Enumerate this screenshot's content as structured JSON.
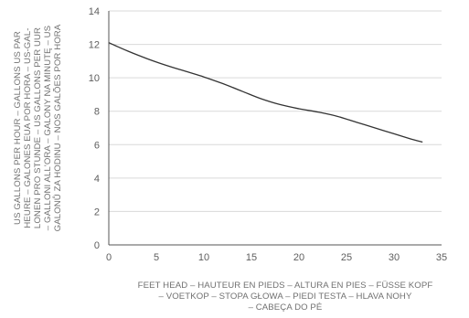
{
  "chart_data": {
    "type": "line",
    "title": "",
    "xlabel_lines": [
      "FEET HEAD – HAUTEUR EN PIEDS – ALTURA EN PIES – FÜSSE KOPF",
      "– VOETKOP – STOPA GŁOWA – PIEDI TESTA – HLAVA NOHY",
      "– CABEÇA DO PÉ"
    ],
    "ylabel_lines": [
      "US GALLONS PER HOUR – GALLONS US PAR",
      "HEURE – GALONES EUA POR HORA – US-GAL-",
      "LONEN PRO STUNDE – US GALLONS PER UUR",
      "– GALLONI ALL'ORA – GALONY NA MINUTĘ – US",
      "GALONŮ ZA HODINU – NOS GALÕES POR HORA"
    ],
    "xlim": [
      0,
      35
    ],
    "ylim": [
      0,
      14
    ],
    "xticks": [
      "0",
      "5",
      "10",
      "15",
      "20",
      "25",
      "30",
      "35"
    ],
    "yticks": [
      "0",
      "2",
      "4",
      "6",
      "8",
      "10",
      "12",
      "14"
    ],
    "grid": "horizontal",
    "colors": {
      "line": "#333333",
      "grid": "#d9d9d9",
      "axis": "#555555"
    },
    "series": [
      {
        "x": [
          0,
          2,
          4,
          6,
          8,
          10,
          12,
          14,
          16,
          18,
          20,
          22,
          24,
          26,
          28,
          30,
          32,
          33
        ],
        "y": [
          12.1,
          11.6,
          11.15,
          10.75,
          10.4,
          10.05,
          9.65,
          9.2,
          8.75,
          8.4,
          8.15,
          7.95,
          7.7,
          7.35,
          7.0,
          6.65,
          6.3,
          6.15
        ]
      }
    ]
  }
}
